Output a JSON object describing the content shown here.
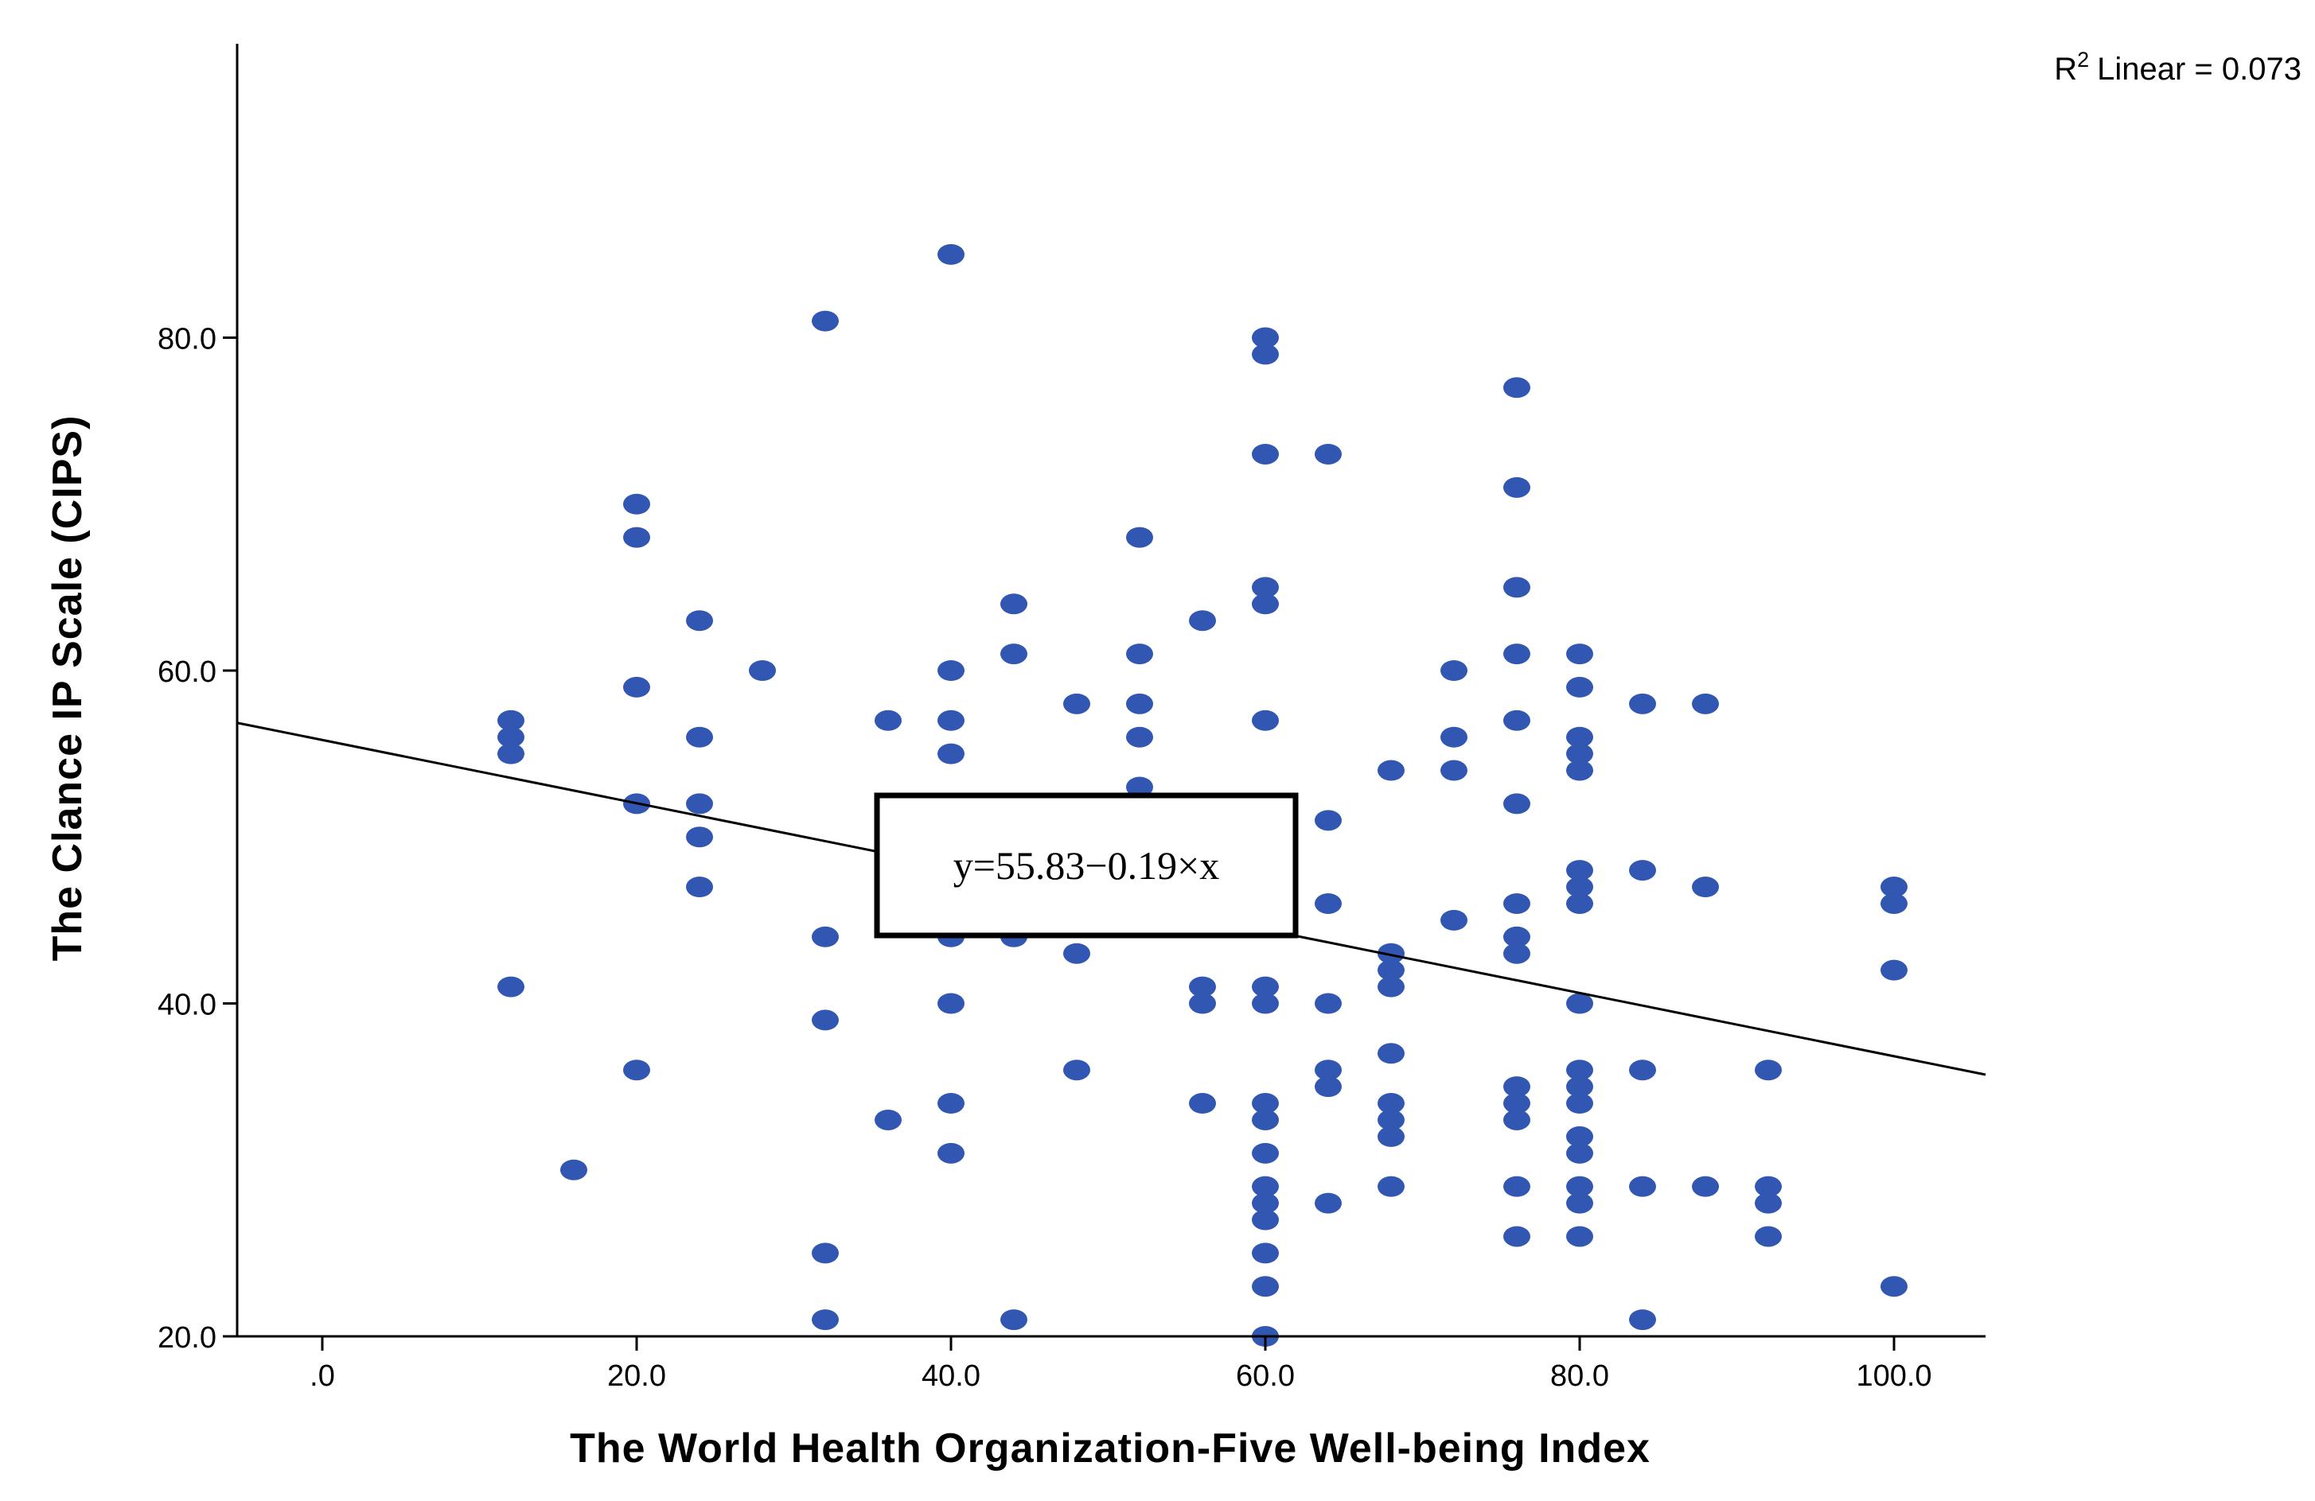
{
  "chart_data": {
    "type": "scatter",
    "xlabel": "The World Health Organization-Five Well-being Index",
    "ylabel": "The Clance IP Scale (CIPS)",
    "xlim": [
      -5.5,
      105.5
    ],
    "ylim": [
      20,
      97
    ],
    "x_ticks": [
      0,
      20,
      40,
      60,
      80,
      100
    ],
    "x_tick_labels": [
      ".0",
      "20.0",
      "40.0",
      "60.0",
      "80.0",
      "100.0"
    ],
    "y_ticks": [
      20,
      40,
      60,
      80
    ],
    "y_tick_labels": [
      "20.0",
      "40.0",
      "60.0",
      "80.0"
    ],
    "r2_label": "Linear = 0.073",
    "r2_prefix": "R",
    "r2_sup": "2",
    "fit_line": {
      "intercept": 55.83,
      "slope": -0.19
    },
    "equation_label": "y=55.83−0.19×x",
    "point_color": "#3157b2",
    "line_color": "#000000",
    "points": [
      {
        "x": 12,
        "y": 57
      },
      {
        "x": 12,
        "y": 56
      },
      {
        "x": 12,
        "y": 55
      },
      {
        "x": 12,
        "y": 41
      },
      {
        "x": 16,
        "y": 30
      },
      {
        "x": 20,
        "y": 70
      },
      {
        "x": 20,
        "y": 68
      },
      {
        "x": 20,
        "y": 59
      },
      {
        "x": 20,
        "y": 52
      },
      {
        "x": 20,
        "y": 36
      },
      {
        "x": 24,
        "y": 63
      },
      {
        "x": 24,
        "y": 56
      },
      {
        "x": 24,
        "y": 52
      },
      {
        "x": 24,
        "y": 50
      },
      {
        "x": 24,
        "y": 47
      },
      {
        "x": 28,
        "y": 60
      },
      {
        "x": 32,
        "y": 81
      },
      {
        "x": 32,
        "y": 44
      },
      {
        "x": 32,
        "y": 39
      },
      {
        "x": 32,
        "y": 25
      },
      {
        "x": 32,
        "y": 21
      },
      {
        "x": 36,
        "y": 57
      },
      {
        "x": 36,
        "y": 33
      },
      {
        "x": 40,
        "y": 85
      },
      {
        "x": 40,
        "y": 60
      },
      {
        "x": 40,
        "y": 57
      },
      {
        "x": 40,
        "y": 55
      },
      {
        "x": 40,
        "y": 44
      },
      {
        "x": 40,
        "y": 40
      },
      {
        "x": 40,
        "y": 34
      },
      {
        "x": 40,
        "y": 31
      },
      {
        "x": 44,
        "y": 64
      },
      {
        "x": 44,
        "y": 61
      },
      {
        "x": 44,
        "y": 44
      },
      {
        "x": 44,
        "y": 21
      },
      {
        "x": 48,
        "y": 58
      },
      {
        "x": 48,
        "y": 43
      },
      {
        "x": 48,
        "y": 36
      },
      {
        "x": 52,
        "y": 68
      },
      {
        "x": 52,
        "y": 61
      },
      {
        "x": 52,
        "y": 58
      },
      {
        "x": 52,
        "y": 56
      },
      {
        "x": 52,
        "y": 53
      },
      {
        "x": 56,
        "y": 63
      },
      {
        "x": 56,
        "y": 41
      },
      {
        "x": 56,
        "y": 40
      },
      {
        "x": 56,
        "y": 34
      },
      {
        "x": 60,
        "y": 80
      },
      {
        "x": 60,
        "y": 79
      },
      {
        "x": 60,
        "y": 73
      },
      {
        "x": 60,
        "y": 65
      },
      {
        "x": 60,
        "y": 64
      },
      {
        "x": 60,
        "y": 57
      },
      {
        "x": 60,
        "y": 41
      },
      {
        "x": 60,
        "y": 40
      },
      {
        "x": 60,
        "y": 34
      },
      {
        "x": 60,
        "y": 33
      },
      {
        "x": 60,
        "y": 31
      },
      {
        "x": 60,
        "y": 29
      },
      {
        "x": 60,
        "y": 28
      },
      {
        "x": 60,
        "y": 27
      },
      {
        "x": 60,
        "y": 25
      },
      {
        "x": 60,
        "y": 23
      },
      {
        "x": 60,
        "y": 20
      },
      {
        "x": 64,
        "y": 73
      },
      {
        "x": 64,
        "y": 51
      },
      {
        "x": 64,
        "y": 46
      },
      {
        "x": 64,
        "y": 40
      },
      {
        "x": 64,
        "y": 36
      },
      {
        "x": 64,
        "y": 35
      },
      {
        "x": 64,
        "y": 28
      },
      {
        "x": 68,
        "y": 54
      },
      {
        "x": 68,
        "y": 43
      },
      {
        "x": 68,
        "y": 42
      },
      {
        "x": 68,
        "y": 41
      },
      {
        "x": 68,
        "y": 37
      },
      {
        "x": 68,
        "y": 34
      },
      {
        "x": 68,
        "y": 33
      },
      {
        "x": 68,
        "y": 32
      },
      {
        "x": 68,
        "y": 29
      },
      {
        "x": 72,
        "y": 60
      },
      {
        "x": 72,
        "y": 56
      },
      {
        "x": 72,
        "y": 54
      },
      {
        "x": 72,
        "y": 45
      },
      {
        "x": 76,
        "y": 77
      },
      {
        "x": 76,
        "y": 71
      },
      {
        "x": 76,
        "y": 65
      },
      {
        "x": 76,
        "y": 61
      },
      {
        "x": 76,
        "y": 57
      },
      {
        "x": 76,
        "y": 52
      },
      {
        "x": 76,
        "y": 46
      },
      {
        "x": 76,
        "y": 44
      },
      {
        "x": 76,
        "y": 43
      },
      {
        "x": 76,
        "y": 35
      },
      {
        "x": 76,
        "y": 34
      },
      {
        "x": 76,
        "y": 33
      },
      {
        "x": 76,
        "y": 29
      },
      {
        "x": 76,
        "y": 26
      },
      {
        "x": 80,
        "y": 61
      },
      {
        "x": 80,
        "y": 59
      },
      {
        "x": 80,
        "y": 56
      },
      {
        "x": 80,
        "y": 55
      },
      {
        "x": 80,
        "y": 54
      },
      {
        "x": 80,
        "y": 48
      },
      {
        "x": 80,
        "y": 47
      },
      {
        "x": 80,
        "y": 46
      },
      {
        "x": 80,
        "y": 40
      },
      {
        "x": 80,
        "y": 36
      },
      {
        "x": 80,
        "y": 35
      },
      {
        "x": 80,
        "y": 34
      },
      {
        "x": 80,
        "y": 32
      },
      {
        "x": 80,
        "y": 31
      },
      {
        "x": 80,
        "y": 29
      },
      {
        "x": 80,
        "y": 28
      },
      {
        "x": 80,
        "y": 26
      },
      {
        "x": 84,
        "y": 58
      },
      {
        "x": 84,
        "y": 48
      },
      {
        "x": 84,
        "y": 36
      },
      {
        "x": 84,
        "y": 29
      },
      {
        "x": 84,
        "y": 21
      },
      {
        "x": 88,
        "y": 58
      },
      {
        "x": 88,
        "y": 47
      },
      {
        "x": 88,
        "y": 29
      },
      {
        "x": 92,
        "y": 36
      },
      {
        "x": 92,
        "y": 29
      },
      {
        "x": 92,
        "y": 28
      },
      {
        "x": 92,
        "y": 26
      },
      {
        "x": 100,
        "y": 47
      },
      {
        "x": 100,
        "y": 46
      },
      {
        "x": 100,
        "y": 42
      },
      {
        "x": 100,
        "y": 23
      }
    ]
  }
}
